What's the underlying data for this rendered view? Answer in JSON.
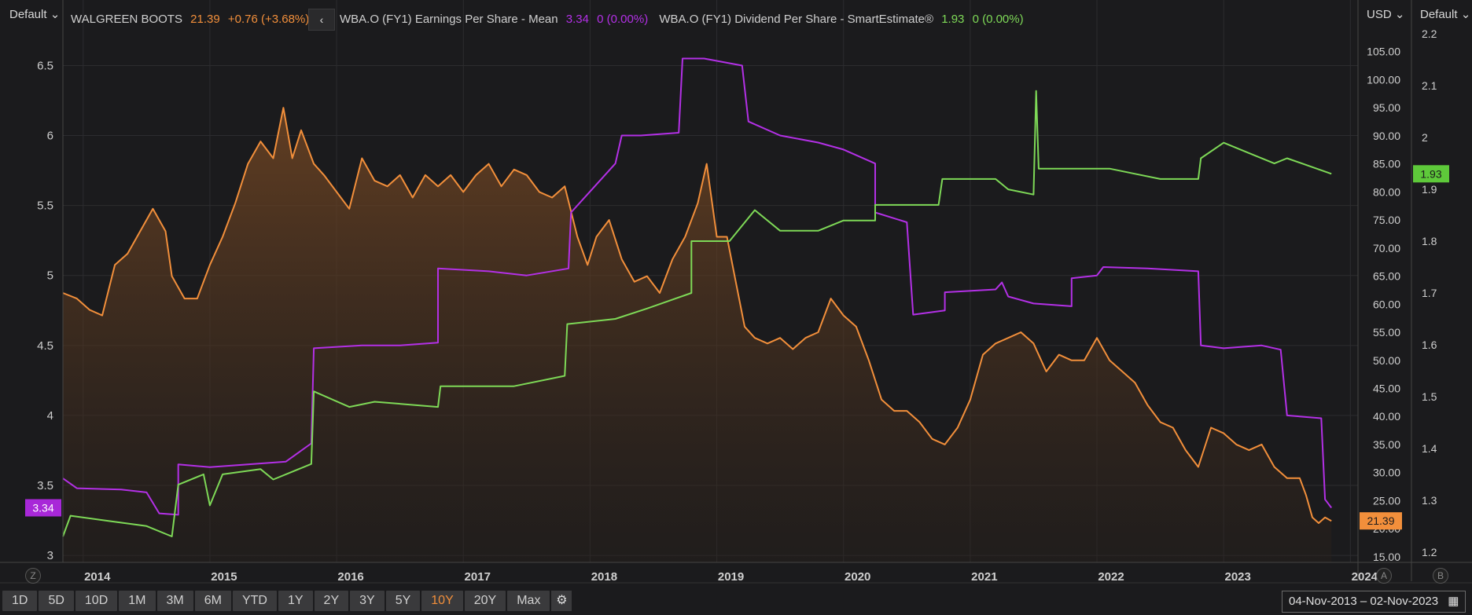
{
  "left_axis_label": "Default",
  "right_axis1_label": "USD",
  "right_axis2_label": "Default",
  "legend": [
    {
      "name": "WALGREEN BOOTS",
      "value": "21.39",
      "change": "+0.76 (+3.68%)",
      "color": "#f28f3b"
    },
    {
      "name": "WBA.O (FY1) Earnings Per Share - Mean",
      "value": "3.34",
      "change": "0 (0.00%)",
      "color": "#b330e6"
    },
    {
      "name": "WBA.O (FY1) Dividend Per Share - SmartEstimate®",
      "value": "1.93",
      "change": "0 (0.00%)",
      "color": "#7ed957"
    }
  ],
  "nav_back": "‹",
  "range_buttons": [
    "1D",
    "5D",
    "10D",
    "1M",
    "3M",
    "6M",
    "YTD",
    "1Y",
    "2Y",
    "3Y",
    "5Y",
    "10Y",
    "20Y",
    "Max"
  ],
  "active_range": "10Y",
  "date_range": "04-Nov-2013 – 02-Nov-2023",
  "corner_buttons": {
    "left": "Z",
    "mid": "A",
    "right": "B"
  },
  "chart_data": {
    "type": "line",
    "x_ticks": [
      "2014",
      "2015",
      "2016",
      "2017",
      "2018",
      "2019",
      "2020",
      "2021",
      "2022",
      "2023",
      "2024"
    ],
    "x_range": [
      2013.84,
      2024.06
    ],
    "axes": {
      "eps_axis": {
        "ticks": [
          "3",
          "3.5",
          "4",
          "4.5",
          "5",
          "5.5",
          "6",
          "6.5"
        ],
        "range": [
          2.95,
          6.8
        ]
      },
      "price_axis": {
        "ticks": [
          "15.00",
          "20.00",
          "25.00",
          "30.00",
          "35.00",
          "40.00",
          "45.00",
          "50.00",
          "55.00",
          "60.00",
          "65.00",
          "70.00",
          "75.00",
          "80.00",
          "85.00",
          "90.00",
          "95.00",
          "100.00",
          "105.00"
        ],
        "range": [
          14.0,
          110.0
        ]
      },
      "dps_axis": {
        "ticks": [
          "1.2",
          "1.3",
          "1.4",
          "1.5",
          "1.6",
          "1.7",
          "1.8",
          "1.9",
          "2",
          "2.1",
          "2.2"
        ],
        "range": [
          1.18,
          2.22
        ]
      }
    },
    "series": [
      {
        "name": "WALGREEN BOOTS",
        "axis": "price_axis",
        "color": "#f28f3b",
        "fill": true,
        "points": [
          [
            2013.84,
            62
          ],
          [
            2013.95,
            61
          ],
          [
            2014.05,
            59
          ],
          [
            2014.15,
            58
          ],
          [
            2014.25,
            67
          ],
          [
            2014.35,
            69
          ],
          [
            2014.45,
            73
          ],
          [
            2014.55,
            77
          ],
          [
            2014.65,
            73
          ],
          [
            2014.7,
            65
          ],
          [
            2014.8,
            61
          ],
          [
            2014.9,
            61
          ],
          [
            2015.0,
            67
          ],
          [
            2015.1,
            72
          ],
          [
            2015.2,
            78
          ],
          [
            2015.3,
            85
          ],
          [
            2015.4,
            89
          ],
          [
            2015.5,
            86
          ],
          [
            2015.58,
            95
          ],
          [
            2015.65,
            86
          ],
          [
            2015.72,
            91
          ],
          [
            2015.82,
            85
          ],
          [
            2015.9,
            83
          ],
          [
            2016.0,
            80
          ],
          [
            2016.1,
            77
          ],
          [
            2016.2,
            86
          ],
          [
            2016.3,
            82
          ],
          [
            2016.4,
            81
          ],
          [
            2016.5,
            83
          ],
          [
            2016.6,
            79
          ],
          [
            2016.7,
            83
          ],
          [
            2016.8,
            81
          ],
          [
            2016.9,
            83
          ],
          [
            2017.0,
            80
          ],
          [
            2017.1,
            83
          ],
          [
            2017.2,
            85
          ],
          [
            2017.3,
            81
          ],
          [
            2017.4,
            84
          ],
          [
            2017.5,
            83
          ],
          [
            2017.6,
            80
          ],
          [
            2017.7,
            79
          ],
          [
            2017.8,
            81
          ],
          [
            2017.9,
            72
          ],
          [
            2017.98,
            67
          ],
          [
            2018.05,
            72
          ],
          [
            2018.15,
            75
          ],
          [
            2018.25,
            68
          ],
          [
            2018.35,
            64
          ],
          [
            2018.45,
            65
          ],
          [
            2018.55,
            62
          ],
          [
            2018.65,
            68
          ],
          [
            2018.75,
            72
          ],
          [
            2018.85,
            78
          ],
          [
            2018.92,
            85
          ],
          [
            2019.0,
            72
          ],
          [
            2019.08,
            72
          ],
          [
            2019.15,
            64
          ],
          [
            2019.22,
            56
          ],
          [
            2019.3,
            54
          ],
          [
            2019.4,
            53
          ],
          [
            2019.5,
            54
          ],
          [
            2019.6,
            52
          ],
          [
            2019.7,
            54
          ],
          [
            2019.8,
            55
          ],
          [
            2019.9,
            61
          ],
          [
            2020.0,
            58
          ],
          [
            2020.1,
            56
          ],
          [
            2020.2,
            50
          ],
          [
            2020.3,
            43
          ],
          [
            2020.4,
            41
          ],
          [
            2020.5,
            41
          ],
          [
            2020.6,
            39
          ],
          [
            2020.7,
            36
          ],
          [
            2020.8,
            35
          ],
          [
            2020.9,
            38
          ],
          [
            2021.0,
            43
          ],
          [
            2021.1,
            51
          ],
          [
            2021.2,
            53
          ],
          [
            2021.3,
            54
          ],
          [
            2021.4,
            55
          ],
          [
            2021.5,
            53
          ],
          [
            2021.6,
            48
          ],
          [
            2021.7,
            51
          ],
          [
            2021.8,
            50
          ],
          [
            2021.9,
            50
          ],
          [
            2022.0,
            54
          ],
          [
            2022.1,
            50
          ],
          [
            2022.2,
            48
          ],
          [
            2022.3,
            46
          ],
          [
            2022.4,
            42
          ],
          [
            2022.5,
            39
          ],
          [
            2022.6,
            38
          ],
          [
            2022.7,
            34
          ],
          [
            2022.8,
            31
          ],
          [
            2022.9,
            38
          ],
          [
            2023.0,
            37
          ],
          [
            2023.1,
            35
          ],
          [
            2023.2,
            34
          ],
          [
            2023.3,
            35
          ],
          [
            2023.4,
            31
          ],
          [
            2023.5,
            29
          ],
          [
            2023.6,
            29
          ],
          [
            2023.65,
            26
          ],
          [
            2023.7,
            22
          ],
          [
            2023.75,
            21
          ],
          [
            2023.8,
            22
          ],
          [
            2023.85,
            21.39
          ]
        ]
      },
      {
        "name": "WBA.O (FY1) Earnings Per Share - Mean",
        "axis": "eps_axis",
        "color": "#b330e6",
        "fill": false,
        "points": [
          [
            2013.84,
            3.55
          ],
          [
            2013.95,
            3.48
          ],
          [
            2014.3,
            3.47
          ],
          [
            2014.5,
            3.45
          ],
          [
            2014.6,
            3.3
          ],
          [
            2014.75,
            3.29
          ],
          [
            2014.75,
            3.65
          ],
          [
            2015.0,
            3.63
          ],
          [
            2015.3,
            3.65
          ],
          [
            2015.6,
            3.67
          ],
          [
            2015.8,
            3.8
          ],
          [
            2015.82,
            4.48
          ],
          [
            2016.2,
            4.5
          ],
          [
            2016.5,
            4.5
          ],
          [
            2016.8,
            4.52
          ],
          [
            2016.8,
            5.05
          ],
          [
            2017.2,
            5.03
          ],
          [
            2017.5,
            5.0
          ],
          [
            2017.83,
            5.05
          ],
          [
            2017.85,
            5.45
          ],
          [
            2018.0,
            5.6
          ],
          [
            2018.2,
            5.8
          ],
          [
            2018.25,
            6.0
          ],
          [
            2018.4,
            6.0
          ],
          [
            2018.7,
            6.02
          ],
          [
            2018.73,
            6.55
          ],
          [
            2018.9,
            6.55
          ],
          [
            2019.2,
            6.5
          ],
          [
            2019.25,
            6.1
          ],
          [
            2019.5,
            6.0
          ],
          [
            2019.8,
            5.95
          ],
          [
            2020.0,
            5.9
          ],
          [
            2020.25,
            5.8
          ],
          [
            2020.25,
            5.45
          ],
          [
            2020.5,
            5.38
          ],
          [
            2020.55,
            4.72
          ],
          [
            2020.8,
            4.75
          ],
          [
            2020.8,
            4.88
          ],
          [
            2021.2,
            4.9
          ],
          [
            2021.25,
            4.95
          ],
          [
            2021.3,
            4.85
          ],
          [
            2021.5,
            4.8
          ],
          [
            2021.8,
            4.78
          ],
          [
            2021.8,
            4.98
          ],
          [
            2022.0,
            5.0
          ],
          [
            2022.05,
            5.06
          ],
          [
            2022.4,
            5.05
          ],
          [
            2022.8,
            5.03
          ],
          [
            2022.82,
            4.5
          ],
          [
            2023.0,
            4.48
          ],
          [
            2023.3,
            4.5
          ],
          [
            2023.45,
            4.47
          ],
          [
            2023.5,
            4.0
          ],
          [
            2023.77,
            3.98
          ],
          [
            2023.8,
            3.4
          ],
          [
            2023.85,
            3.34
          ]
        ]
      },
      {
        "name": "WBA.O (FY1) Dividend Per Share - SmartEstimate®",
        "axis": "dps_axis",
        "color": "#7ed957",
        "fill": false,
        "points": [
          [
            2013.84,
            1.23
          ],
          [
            2013.9,
            1.27
          ],
          [
            2014.2,
            1.26
          ],
          [
            2014.5,
            1.25
          ],
          [
            2014.7,
            1.23
          ],
          [
            2014.75,
            1.33
          ],
          [
            2014.95,
            1.35
          ],
          [
            2015.0,
            1.29
          ],
          [
            2015.1,
            1.35
          ],
          [
            2015.4,
            1.36
          ],
          [
            2015.5,
            1.34
          ],
          [
            2015.8,
            1.37
          ],
          [
            2015.82,
            1.51
          ],
          [
            2016.1,
            1.48
          ],
          [
            2016.3,
            1.49
          ],
          [
            2016.8,
            1.48
          ],
          [
            2016.82,
            1.52
          ],
          [
            2017.4,
            1.52
          ],
          [
            2017.8,
            1.54
          ],
          [
            2017.82,
            1.64
          ],
          [
            2018.2,
            1.65
          ],
          [
            2018.45,
            1.67
          ],
          [
            2018.8,
            1.7
          ],
          [
            2018.8,
            1.8
          ],
          [
            2019.1,
            1.8
          ],
          [
            2019.3,
            1.86
          ],
          [
            2019.5,
            1.82
          ],
          [
            2019.8,
            1.82
          ],
          [
            2020.0,
            1.84
          ],
          [
            2020.25,
            1.84
          ],
          [
            2020.25,
            1.87
          ],
          [
            2020.5,
            1.87
          ],
          [
            2020.75,
            1.87
          ],
          [
            2020.78,
            1.92
          ],
          [
            2021.0,
            1.92
          ],
          [
            2021.2,
            1.92
          ],
          [
            2021.3,
            1.9
          ],
          [
            2021.5,
            1.89
          ],
          [
            2021.52,
            2.09
          ],
          [
            2021.54,
            1.94
          ],
          [
            2021.8,
            1.94
          ],
          [
            2022.1,
            1.94
          ],
          [
            2022.3,
            1.93
          ],
          [
            2022.5,
            1.92
          ],
          [
            2022.8,
            1.92
          ],
          [
            2022.82,
            1.96
          ],
          [
            2023.0,
            1.99
          ],
          [
            2023.2,
            1.97
          ],
          [
            2023.4,
            1.95
          ],
          [
            2023.5,
            1.96
          ],
          [
            2023.85,
            1.93
          ]
        ]
      }
    ],
    "end_labels": {
      "eps": "3.34",
      "price": "21.39",
      "dps": "1.93"
    }
  }
}
